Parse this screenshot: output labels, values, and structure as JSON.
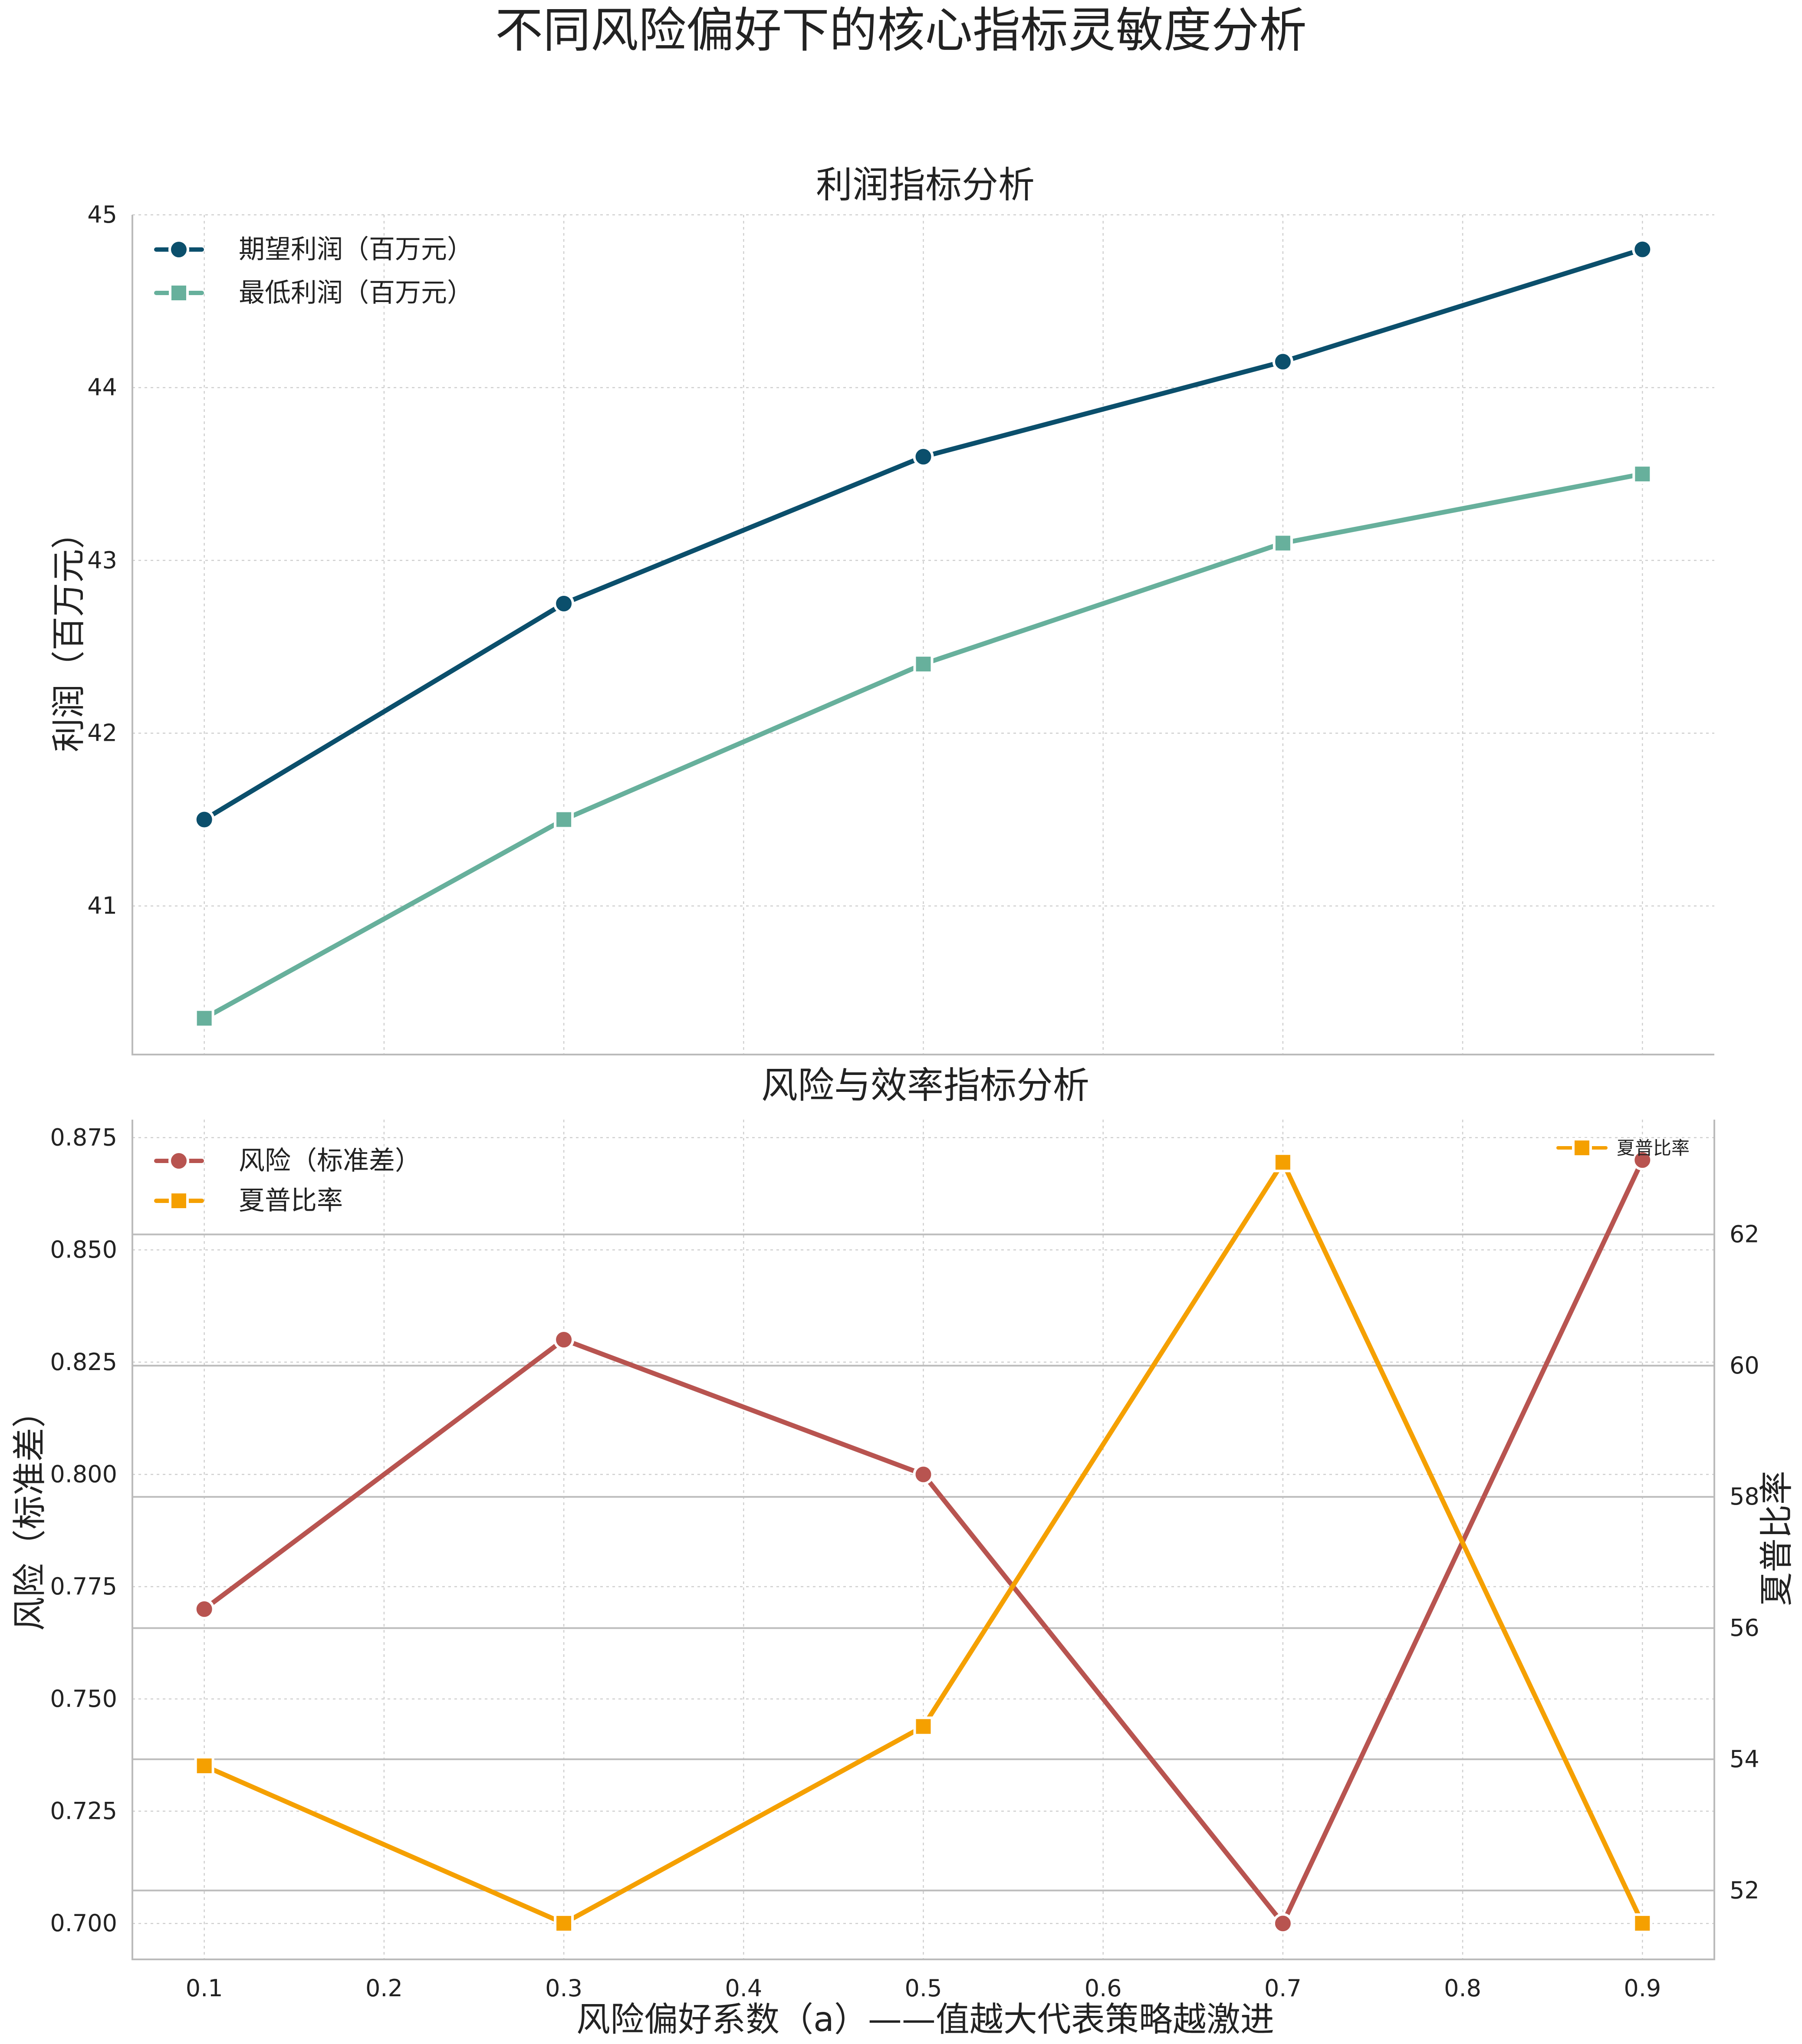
{
  "title": "不同风险偏好下的核心指标灵敏度分析",
  "charts": {
    "top": {
      "subtitle": "利润指标分析",
      "ylabel": "利润（百万元）"
    },
    "bottom": {
      "subtitle": "风险与效率指标分析",
      "ylabel_left": "风险（标准差）",
      "ylabel_right": "夏普比率",
      "xlabel": "风险偏好系数（a）——值越大代表策略越激进"
    }
  },
  "chart_data": [
    {
      "type": "line",
      "title": "利润指标分析",
      "xlabel": "",
      "ylabel": "利润（百万元）",
      "x": [
        0.1,
        0.3,
        0.5,
        0.7,
        0.9
      ],
      "xlim": [
        0.06,
        0.94
      ],
      "ylim": [
        40.14,
        45.0
      ],
      "xticks": [
        0.1,
        0.2,
        0.3,
        0.4,
        0.5,
        0.6,
        0.7,
        0.8,
        0.9
      ],
      "yticks": [
        41,
        42,
        43,
        44,
        45
      ],
      "grid": true,
      "legend": "top-left",
      "series": [
        {
          "name": "期望利润（百万元）",
          "color": "#0b4f6c",
          "marker": "circle",
          "values": [
            41.5,
            42.75,
            43.6,
            44.15,
            44.8
          ]
        },
        {
          "name": "最低利润（百万元）",
          "color": "#67b09c",
          "marker": "square",
          "values": [
            40.35,
            41.5,
            42.4,
            43.1,
            43.5
          ]
        }
      ]
    },
    {
      "type": "line",
      "title": "风险与效率指标分析",
      "xlabel": "风险偏好系数（a）——值越大代表策略越激进",
      "ylabel": "风险（标准差）",
      "ylabel_right": "夏普比率",
      "x": [
        0.1,
        0.3,
        0.5,
        0.7,
        0.9
      ],
      "xlim": [
        0.06,
        0.94
      ],
      "ylim_left": [
        0.692,
        0.879
      ],
      "ylim_right": [
        50.95,
        63.75
      ],
      "xticks": [
        0.1,
        0.2,
        0.3,
        0.4,
        0.5,
        0.6,
        0.7,
        0.8,
        0.9
      ],
      "yticks_left": [
        0.7,
        0.725,
        0.75,
        0.775,
        0.8,
        0.825,
        0.85,
        0.875
      ],
      "yticks_right": [
        52,
        54,
        56,
        58,
        60,
        62
      ],
      "grid": true,
      "legend": "top-left",
      "legend_right": "top-right",
      "left_axis_color": "#c0504d",
      "right_axis_color": "#f5a000",
      "series": [
        {
          "name": "风险（标准差）",
          "axis": "left",
          "color": "#b85450",
          "marker": "circle",
          "values": [
            0.77,
            0.83,
            0.8,
            0.7,
            0.87
          ]
        },
        {
          "name": "夏普比率",
          "axis": "right",
          "color": "#f5a000",
          "marker": "square",
          "values": [
            53.9,
            51.5,
            54.5,
            63.1,
            51.5
          ]
        }
      ]
    }
  ]
}
